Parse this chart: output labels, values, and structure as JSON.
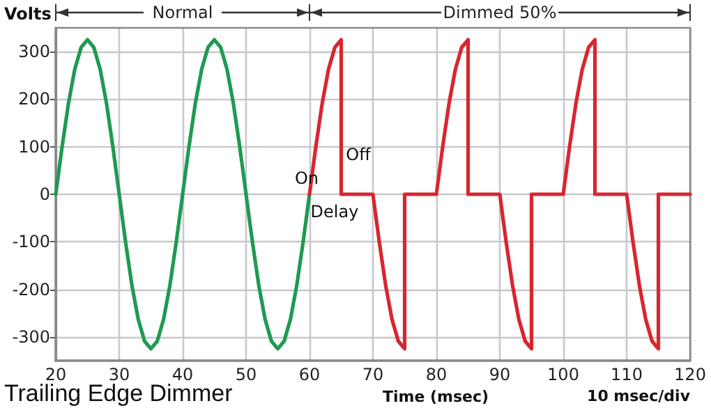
{
  "chart_data": {
    "type": "line",
    "title": "Trailing Edge Dimmer",
    "xlabel": "Time (msec)",
    "ylabel": "Volts",
    "xlim": [
      20,
      120
    ],
    "xticks": [
      20,
      30,
      40,
      50,
      60,
      70,
      80,
      90,
      100,
      110,
      120
    ],
    "ylim": [
      -350,
      350
    ],
    "yticks": [
      -300,
      -200,
      -100,
      0,
      100,
      200,
      300
    ],
    "grid": true,
    "marker": "none",
    "line_style": "solid",
    "series": [
      {
        "color": "#1f9a52",
        "x": [
          20,
          21,
          22,
          23,
          24,
          25,
          26,
          27,
          28,
          29,
          30,
          31,
          32,
          33,
          34,
          35,
          36,
          37,
          38,
          39,
          40,
          41,
          42,
          43,
          44,
          45,
          46,
          47,
          48,
          49,
          50,
          51,
          52,
          53,
          54,
          55,
          56,
          57,
          58,
          59,
          60
        ],
        "values": [
          0,
          100,
          191,
          263,
          309,
          325,
          309,
          263,
          191,
          100,
          0,
          -100,
          -191,
          -263,
          -309,
          -325,
          -309,
          -263,
          -191,
          -100,
          0,
          100,
          191,
          263,
          309,
          325,
          309,
          263,
          191,
          100,
          0,
          -100,
          -191,
          -263,
          -309,
          -325,
          -309,
          -263,
          -191,
          -100,
          0
        ]
      },
      {
        "color": "#d8262f",
        "x": [
          60,
          61,
          62,
          63,
          64,
          65,
          65,
          70,
          71,
          72,
          73,
          74,
          75,
          75,
          80,
          81,
          82,
          83,
          84,
          85,
          85,
          90,
          91,
          92,
          93,
          94,
          95,
          95,
          100,
          101,
          102,
          103,
          104,
          105,
          105,
          110,
          111,
          112,
          113,
          114,
          115,
          115,
          120
        ],
        "values": [
          0,
          100,
          191,
          263,
          309,
          325,
          0,
          0,
          -100,
          -191,
          -263,
          -309,
          -325,
          0,
          0,
          100,
          191,
          263,
          309,
          325,
          0,
          0,
          -100,
          -191,
          -263,
          -309,
          -325,
          0,
          0,
          100,
          191,
          263,
          309,
          325,
          0,
          0,
          -100,
          -191,
          -263,
          -309,
          -325,
          0,
          0
        ]
      }
    ],
    "annotations": [
      "Normal",
      "Dimmed 50%",
      "On",
      "Off",
      "Delay",
      "10 msec/div"
    ]
  }
}
